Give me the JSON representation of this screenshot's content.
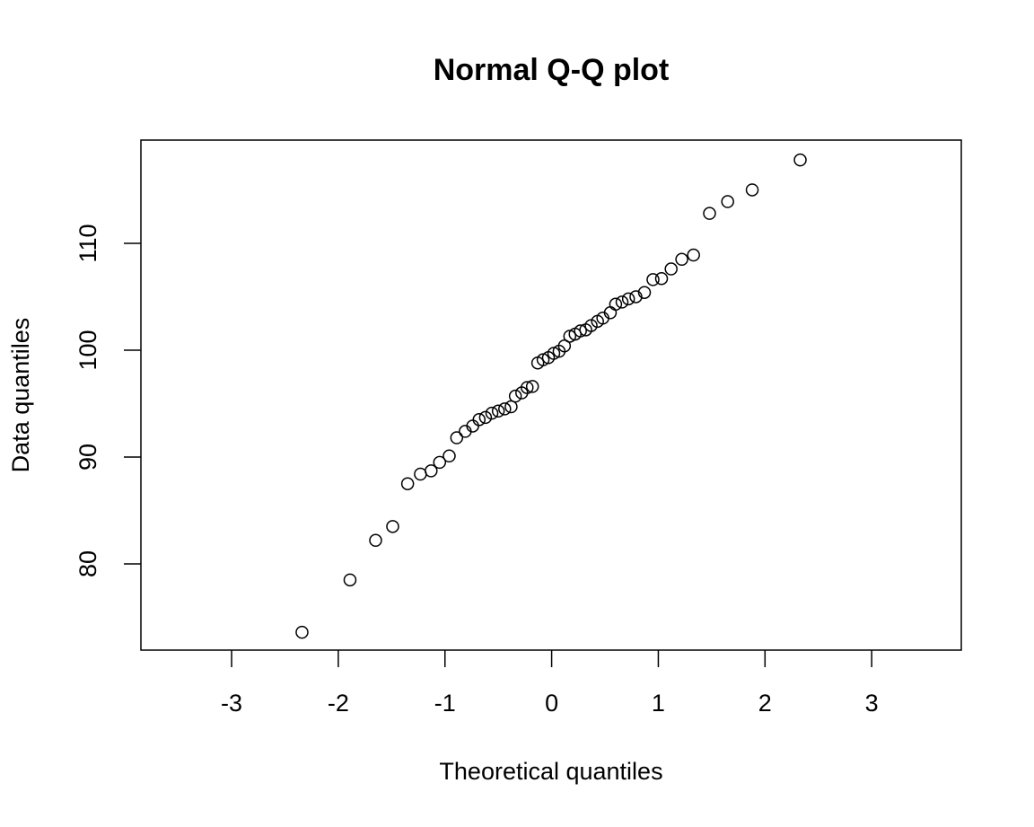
{
  "chart_data": {
    "type": "scatter",
    "title": "Normal Q-Q plot",
    "x_label": "Theoretical quantiles",
    "y_label": "Data quantiles",
    "x": [
      -2.34,
      -1.89,
      -1.65,
      -1.49,
      -1.35,
      -1.23,
      -1.13,
      -1.05,
      -0.96,
      -0.89,
      -0.81,
      -0.74,
      -0.68,
      -0.62,
      -0.56,
      -0.5,
      -0.44,
      -0.38,
      -0.34,
      -0.28,
      -0.23,
      -0.18,
      -0.13,
      -0.08,
      -0.03,
      0.02,
      0.07,
      0.12,
      0.17,
      0.22,
      0.27,
      0.32,
      0.37,
      0.43,
      0.48,
      0.55,
      0.6,
      0.66,
      0.72,
      0.79,
      0.87,
      0.95,
      1.03,
      1.12,
      1.22,
      1.33,
      1.48,
      1.65,
      1.88,
      2.33
    ],
    "values": [
      73.6,
      78.5,
      82.2,
      83.5,
      87.5,
      88.4,
      88.7,
      89.5,
      90.1,
      91.8,
      92.4,
      92.9,
      93.5,
      93.7,
      94.1,
      94.3,
      94.5,
      94.7,
      95.7,
      96.0,
      96.5,
      96.6,
      98.8,
      99.1,
      99.3,
      99.7,
      99.9,
      100.4,
      101.3,
      101.5,
      101.8,
      101.9,
      102.3,
      102.7,
      103.0,
      103.5,
      104.3,
      104.5,
      104.8,
      105.0,
      105.4,
      106.6,
      106.7,
      107.6,
      108.5,
      108.9,
      112.8,
      113.9,
      115.0,
      117.8
    ],
    "color": "#000000",
    "xlim": [
      -3.85,
      3.84
    ],
    "ylim": [
      71.93,
      119.66
    ],
    "xticks": [
      -3,
      -2,
      -1,
      0,
      1,
      2,
      3
    ],
    "yticks": [
      80,
      90,
      100,
      110
    ]
  }
}
